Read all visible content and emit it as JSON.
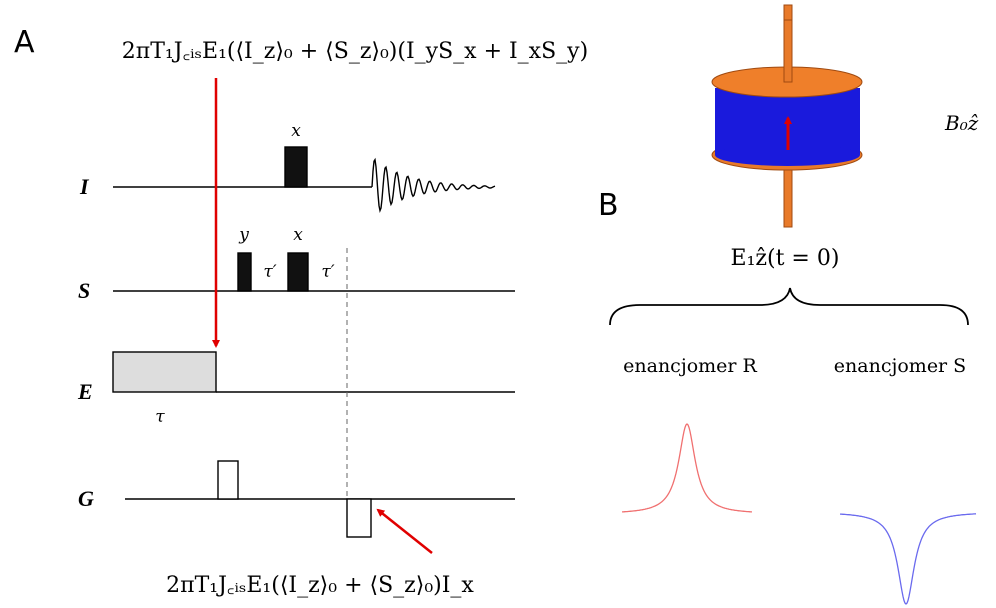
{
  "panels": {
    "a": {
      "label": "A",
      "formula_top": "2πT₁J꜀ᵢₛE₁(⟨I_z⟩₀ + ⟨S_z⟩₀)(I_yS_x + I_xS_y)",
      "formula_bottom": "2πT₁J꜀ᵢₛE₁(⟨I_z⟩₀ + ⟨S_z⟩₀)I_x",
      "channels": [
        "I",
        "S",
        "E",
        "G"
      ],
      "pulse_labels": [
        "x",
        "y",
        "x"
      ],
      "delays": [
        "τ′",
        "τ′",
        "τ"
      ]
    },
    "b": {
      "label": "B",
      "field": "B₀ẑ",
      "field_term": "E₁ẑ(t = 0)",
      "enantiomers": [
        "enancjomer R",
        "enancjomer S"
      ]
    }
  }
}
